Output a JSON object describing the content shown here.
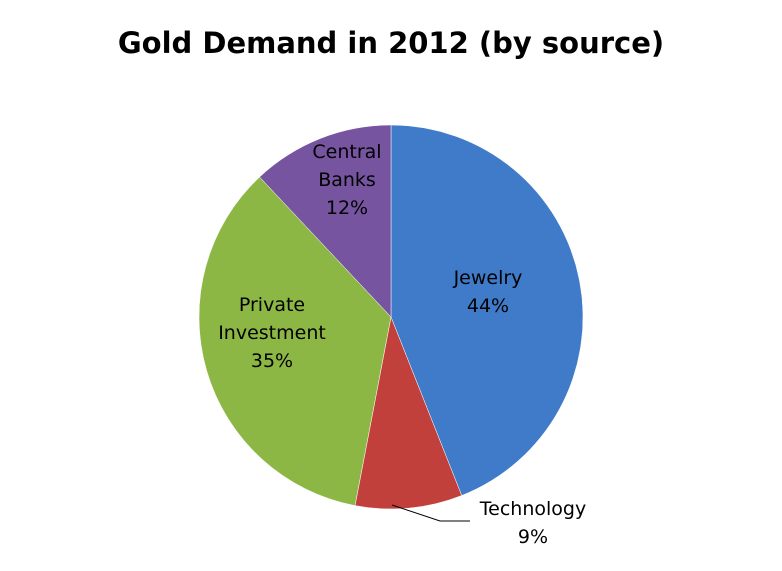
{
  "chart_data": {
    "type": "pie",
    "title": "Gold Demand in 2012 (by source)",
    "slices": [
      {
        "label_lines": [
          "Jewelry",
          "44%"
        ],
        "name": "Jewelry",
        "value": 44,
        "color": "#3f7bc8"
      },
      {
        "label_lines": [
          "Technology",
          "9%"
        ],
        "name": "Technology",
        "value": 9,
        "color": "#c2403c"
      },
      {
        "label_lines": [
          "Private",
          "Investment",
          "35%"
        ],
        "name": "Private Investment",
        "value": 35,
        "color": "#8db745"
      },
      {
        "label_lines": [
          "Central",
          "Banks",
          "12%"
        ],
        "name": "Central Banks",
        "value": 12,
        "color": "#7654a0"
      }
    ],
    "start_angle_deg": 0,
    "direction": "clockwise",
    "legend": "none"
  }
}
